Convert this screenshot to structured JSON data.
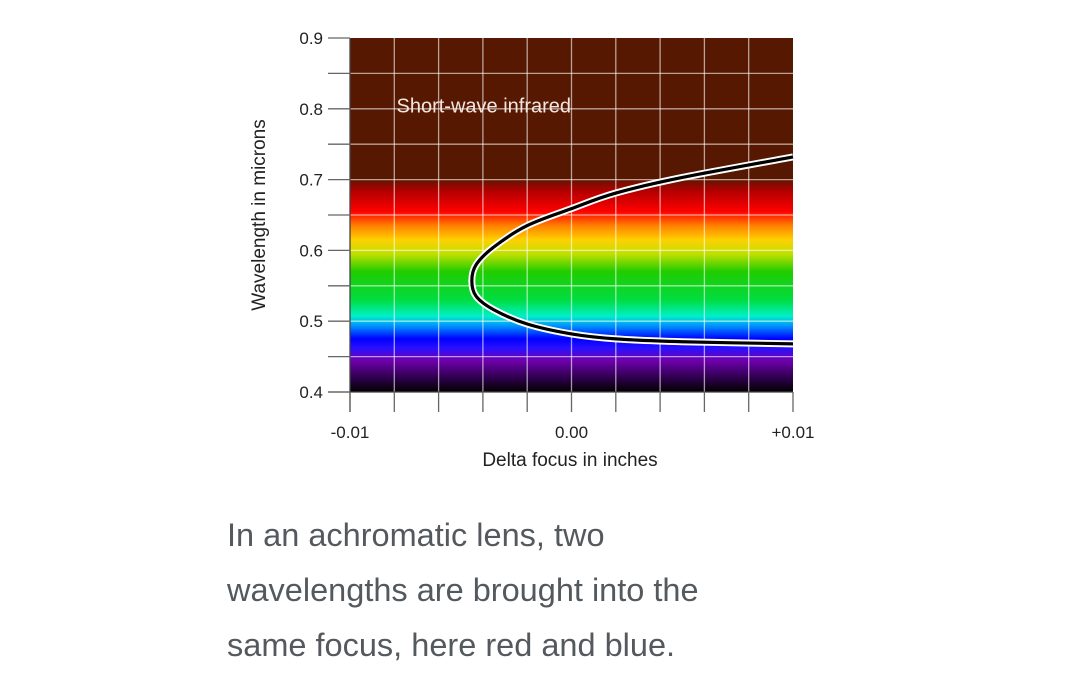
{
  "chart_data": {
    "type": "line",
    "xlabel": "Delta focus in inches",
    "ylabel": "Wavelength in microns",
    "xlim": [
      -0.01,
      0.01
    ],
    "ylim": [
      0.4,
      0.9
    ],
    "x_ticks": [
      {
        "value": -0.01,
        "label": "-0.01"
      },
      {
        "value": 0.0,
        "label": "0.00"
      },
      {
        "value": 0.01,
        "label": "+0.01"
      }
    ],
    "y_ticks": [
      {
        "value": 0.4,
        "label": "0.4"
      },
      {
        "value": 0.5,
        "label": "0.5"
      },
      {
        "value": 0.6,
        "label": "0.6"
      },
      {
        "value": 0.7,
        "label": "0.7"
      },
      {
        "value": 0.8,
        "label": "0.8"
      },
      {
        "value": 0.9,
        "label": "0.9"
      }
    ],
    "grid": true,
    "grid_x_step": 0.002,
    "grid_y_step": 0.05,
    "annotation": {
      "text": "Short-wave infrared",
      "x": -0.0079,
      "y": 0.795
    },
    "background_spectrum": [
      {
        "wavelength": 0.4,
        "color": "#000000"
      },
      {
        "wavelength": 0.425,
        "color": "#3a0060"
      },
      {
        "wavelength": 0.445,
        "color": "#7000b0"
      },
      {
        "wavelength": 0.462,
        "color": "#2a10ff"
      },
      {
        "wavelength": 0.475,
        "color": "#0000ff"
      },
      {
        "wavelength": 0.493,
        "color": "#0090ff"
      },
      {
        "wavelength": 0.507,
        "color": "#00f0c8"
      },
      {
        "wavelength": 0.53,
        "color": "#00dd40"
      },
      {
        "wavelength": 0.57,
        "color": "#20cc00"
      },
      {
        "wavelength": 0.595,
        "color": "#c0e000"
      },
      {
        "wavelength": 0.615,
        "color": "#ffd000"
      },
      {
        "wavelength": 0.635,
        "color": "#ff8000"
      },
      {
        "wavelength": 0.655,
        "color": "#ff0000"
      },
      {
        "wavelength": 0.685,
        "color": "#b00000"
      },
      {
        "wavelength": 0.702,
        "color": "#561800"
      },
      {
        "wavelength": 0.9,
        "color": "#561800"
      }
    ],
    "series": [
      {
        "color": "#000000",
        "points": [
          [
            0.01,
            0.732
          ],
          [
            0.005,
            0.703
          ],
          [
            0.002,
            0.681
          ],
          [
            0.0,
            0.659
          ],
          [
            -0.002,
            0.635
          ],
          [
            -0.0035,
            0.605
          ],
          [
            -0.0043,
            0.58
          ],
          [
            -0.0045,
            0.557
          ],
          [
            -0.0043,
            0.535
          ],
          [
            -0.0035,
            0.516
          ],
          [
            -0.002,
            0.496
          ],
          [
            0.0,
            0.482
          ],
          [
            0.002,
            0.475
          ],
          [
            0.005,
            0.471
          ],
          [
            0.01,
            0.468
          ]
        ]
      }
    ]
  },
  "caption": {
    "lines": [
      "In an achromatic lens, two",
      "wavelengths are brought into the",
      "same focus, here red and blue."
    ]
  }
}
